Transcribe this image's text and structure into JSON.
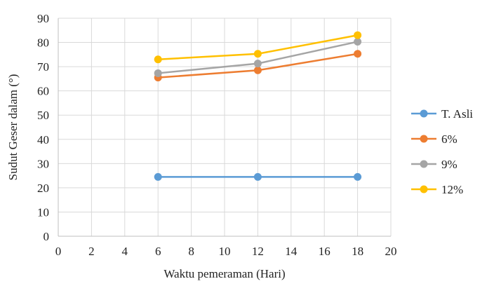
{
  "chart_data": {
    "type": "line",
    "title": "",
    "xlabel": "Waktu pemeraman (Hari)",
    "ylabel": "Sudut Geser dalam (°)",
    "xlim": [
      0,
      20
    ],
    "ylim": [
      0,
      90
    ],
    "x_ticks": [
      0,
      2,
      4,
      6,
      8,
      10,
      12,
      14,
      16,
      18,
      20
    ],
    "y_ticks": [
      0,
      10,
      20,
      30,
      40,
      50,
      60,
      70,
      80,
      90
    ],
    "grid": true,
    "legend_position": "right",
    "series": [
      {
        "name": "T. Asli",
        "color": "#5B9BD5",
        "x": [
          6,
          12,
          18
        ],
        "y": [
          24.5,
          24.5,
          24.5
        ]
      },
      {
        "name": "6%",
        "color": "#ED7D31",
        "x": [
          6,
          12,
          18
        ],
        "y": [
          65.5,
          68.5,
          75.3
        ]
      },
      {
        "name": "9%",
        "color": "#A5A5A5",
        "x": [
          6,
          12,
          18
        ],
        "y": [
          67.3,
          71.3,
          80.3
        ]
      },
      {
        "name": "12%",
        "color": "#FFC000",
        "x": [
          6,
          12,
          18
        ],
        "y": [
          73.0,
          75.3,
          83.0
        ]
      }
    ]
  }
}
